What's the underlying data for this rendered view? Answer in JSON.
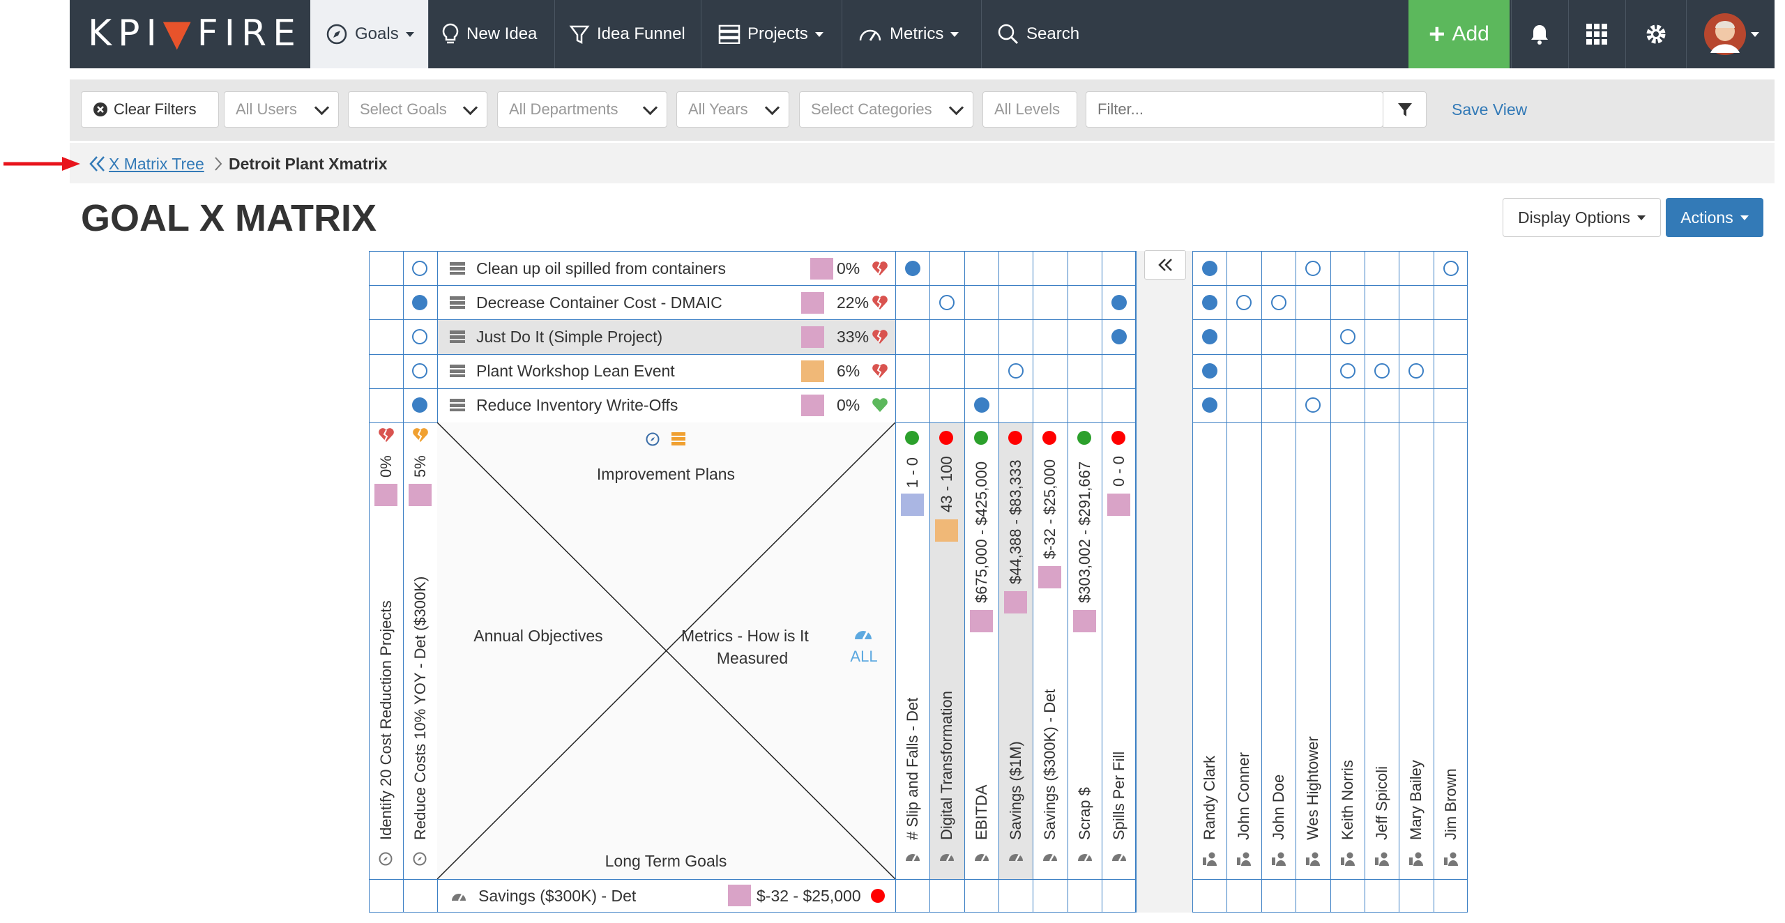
{
  "brand": {
    "name_left": "KPI",
    "name_right": "FIRE"
  },
  "nav": {
    "goals": "Goals",
    "new_idea": "New Idea",
    "idea_funnel": "Idea Funnel",
    "projects": "Projects",
    "metrics": "Metrics",
    "search": "Search",
    "add": "Add"
  },
  "filters": {
    "clear": "Clear Filters",
    "users": "All Users",
    "goals": "Select Goals",
    "departments": "All Departments",
    "years": "All Years",
    "categories": "Select Categories",
    "levels": "All Levels",
    "filter_placeholder": "Filter...",
    "save_view": "Save View"
  },
  "breadcrumb": {
    "parent": "X Matrix Tree",
    "current": "Detroit Plant Xmatrix"
  },
  "page": {
    "title": "GOAL X MATRIX",
    "display_options": "Display Options",
    "actions": "Actions"
  },
  "projects": [
    {
      "name": "Clean up oil spilled from containers",
      "pct": "0%",
      "color": "#d9a3c7",
      "health": "broken"
    },
    {
      "name": "Decrease Container Cost - DMAIC",
      "pct": "22%",
      "color": "#d9a3c7",
      "health": "broken"
    },
    {
      "name": "Just Do It (Simple Project)",
      "pct": "33%",
      "color": "#d9a3c7",
      "health": "broken"
    },
    {
      "name": "Plant Workshop Lean Event",
      "pct": "6%",
      "color": "#f0b877",
      "health": "broken"
    },
    {
      "name": "Reduce Inventory Write-Offs",
      "pct": "0%",
      "color": "#d9a3c7",
      "health": "good"
    }
  ],
  "annual_objectives": [
    {
      "name": "Identify 20 Cost Reduction Projects",
      "pct": "0%",
      "color": "#d9a3c7"
    },
    {
      "name": "Reduce Costs 10% YOY - Det ($300K)",
      "pct": "5%",
      "color": "#d9a3c7"
    }
  ],
  "quadrants": {
    "top": "Improvement Plans",
    "left": "Annual Objectives",
    "right_line1": "Metrics - How is It",
    "right_line2": "Measured",
    "right_all": "ALL",
    "bottom": "Long Term Goals"
  },
  "metrics": [
    {
      "name": "# Slip and Falls - Det",
      "range": "1 - 0",
      "status": "#2ca02c",
      "color": "#aab6e3"
    },
    {
      "name": "Digital Transformation",
      "range": "43 - 100",
      "status": "#ff0000",
      "color": "#f0b877"
    },
    {
      "name": "EBITDA",
      "range": "$675,000 - $425,000",
      "status": "#2ca02c",
      "color": "#d9a3c7"
    },
    {
      "name": "Savings ($1M)",
      "range": "$44,388 - $83,333",
      "status": "#ff0000",
      "color": "#d9a3c7"
    },
    {
      "name": "Savings ($300K) - Det",
      "range": "$-32 - $25,000",
      "status": "#ff0000",
      "color": "#d9a3c7"
    },
    {
      "name": "Scrap $",
      "range": "$303,002 - $291,667",
      "status": "#2ca02c",
      "color": "#d9a3c7"
    },
    {
      "name": "Spills Per Fill",
      "range": "0 - 0",
      "status": "#ff0000",
      "color": "#d9a3c7"
    }
  ],
  "people": [
    "Randy Clark",
    "John Conner",
    "John Doe",
    "Wes Hightower",
    "Keith Norris",
    "Jeff Spicoli",
    "Mary Bailey",
    "Jim Brown"
  ],
  "long_term_goal": {
    "name": "Savings ($300K) - Det",
    "range": "$-32 - $25,000",
    "status": "#ff0000",
    "color": "#d9a3c7"
  }
}
